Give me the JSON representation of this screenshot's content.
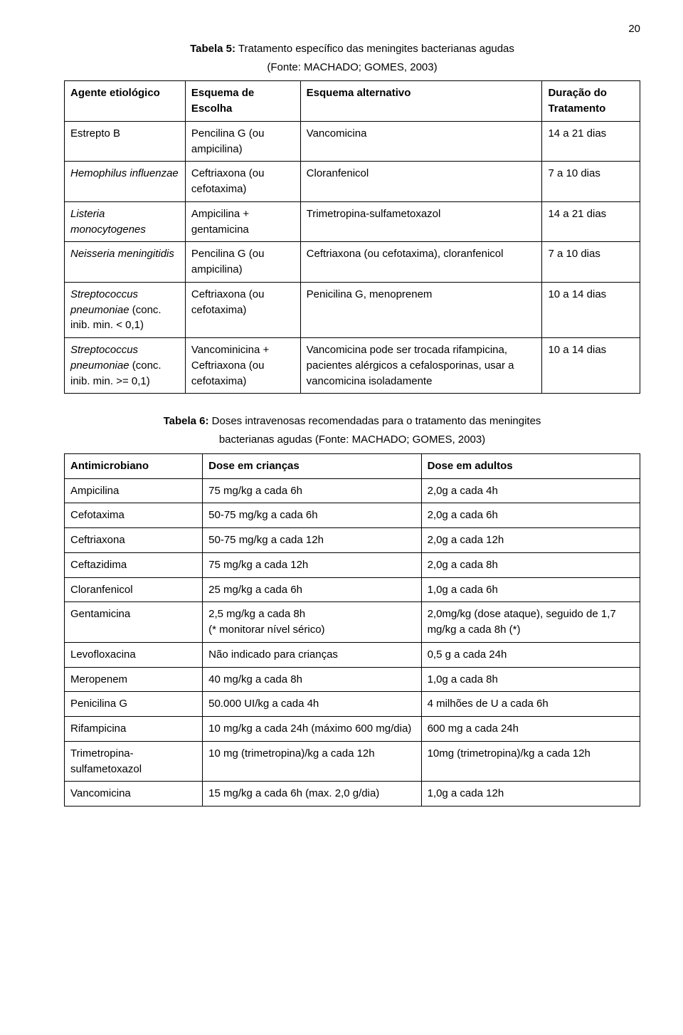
{
  "page_number": "20",
  "table5": {
    "caption_bold": "Tabela 5:",
    "caption_rest": " Tratamento específico das meningites bacterianas agudas",
    "subcaption": "(Fonte: MACHADO; GOMES, 2003)",
    "headers": {
      "c1": "Agente etiológico",
      "c2": "Esquema de Escolha",
      "c3": "Esquema alternativo",
      "c4": "Duração do Tratamento"
    },
    "rows": [
      {
        "c1": "Estrepto B",
        "c1_italic": false,
        "c2": "Pencilina G (ou ampicilina)",
        "c3": "Vancomicina",
        "c4": "14 a 21 dias"
      },
      {
        "c1": "Hemophilus influenzae",
        "c1_italic": true,
        "c2": "Ceftriaxona (ou cefotaxima)",
        "c3": "Cloranfenicol",
        "c4": "7 a 10 dias"
      },
      {
        "c1": "Listeria monocytogenes",
        "c1_italic": true,
        "c2": "Ampicilina + gentamicina",
        "c3": "Trimetropina-sulfametoxazol",
        "c4": "14 a 21 dias"
      },
      {
        "c1": "Neisseria meningitidis",
        "c1_italic": true,
        "c2": "Pencilina G (ou ampicilina)",
        "c3": "Ceftriaxona (ou cefotaxima), cloranfenicol",
        "c4": "7 a 10 dias"
      },
      {
        "c1_html": "<span class='italic'>Streptococcus pneumoniae</span> (conc. inib. min. &lt; 0,1)",
        "c2": "Ceftriaxona (ou cefotaxima)",
        "c3": "Penicilina G, menoprenem",
        "c4": "10 a 14 dias"
      },
      {
        "c1_html": "<span class='italic'>Streptococcus pneumoniae</span> (conc. inib. min. &gt;= 0,1)",
        "c2": "Vancominicina + Ceftriaxona (ou cefotaxima)",
        "c3": "Vancomicina pode ser trocada rifampicina, pacientes alérgicos a cefalosporinas, usar a vancomicina isoladamente",
        "c4": "10 a 14 dias"
      }
    ]
  },
  "table6": {
    "caption_bold": "Tabela 6:",
    "caption_rest": " Doses intravenosas recomendadas para o tratamento das meningites",
    "subcaption": "bacterianas agudas (Fonte: MACHADO; GOMES, 2003)",
    "headers": {
      "c1": "Antimicrobiano",
      "c2": "Dose em crianças",
      "c3": "Dose em adultos"
    },
    "rows": [
      {
        "c1": "Ampicilina",
        "c2": "75 mg/kg a cada 6h",
        "c3": "2,0g a cada 4h"
      },
      {
        "c1": "Cefotaxima",
        "c2": "50-75 mg/kg a cada 6h",
        "c3": "2,0g a cada 6h"
      },
      {
        "c1": "Ceftriaxona",
        "c2": "50-75 mg/kg a cada 12h",
        "c3": "2,0g a cada 12h"
      },
      {
        "c1": "Ceftazidima",
        "c2": "75 mg/kg a cada 12h",
        "c3": "2,0g a cada 8h"
      },
      {
        "c1": "Cloranfenicol",
        "c2": "25 mg/kg a cada 6h",
        "c3": "1,0g a cada 6h"
      },
      {
        "c1": "Gentamicina",
        "c2": "2,5 mg/kg a cada 8h\n(* monitorar nível sérico)",
        "c3": "2,0mg/kg (dose ataque), seguido de 1,7 mg/kg  a cada 8h (*)"
      },
      {
        "c1": "Levofloxacina",
        "c2": "Não indicado para crianças",
        "c3": "0,5 g a cada 24h"
      },
      {
        "c1": "Meropenem",
        "c2": "40 mg/kg a cada 8h",
        "c3": "1,0g a cada 8h"
      },
      {
        "c1": "Penicilina G",
        "c2": "50.000 UI/kg a cada 4h",
        "c3": "4 milhões de U a cada 6h"
      },
      {
        "c1": "Rifampicina",
        "c2": "10 mg/kg a cada 24h (máximo 600 mg/dia)",
        "c3": "600 mg a cada 24h"
      },
      {
        "c1": "Trimetropina-sulfametoxazol",
        "c2": "10 mg (trimetropina)/kg a cada 12h",
        "c3": "10mg (trimetropina)/kg a cada 12h"
      },
      {
        "c1": "Vancomicina",
        "c2": "15 mg/kg a cada 6h (max. 2,0 g/dia)",
        "c3": "1,0g a cada 12h"
      }
    ]
  }
}
